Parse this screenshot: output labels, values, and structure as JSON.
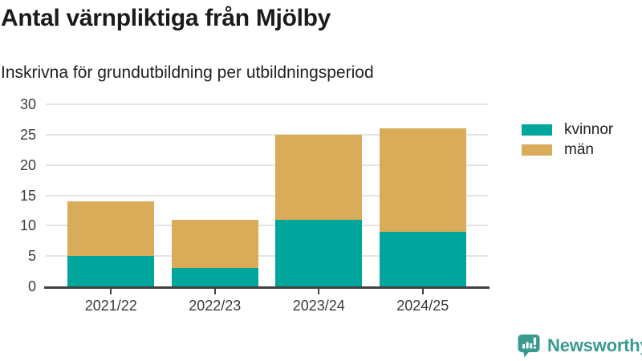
{
  "header": {
    "title": "Antal värnpliktiga från Mjölby",
    "subtitle": "Inskrivna för grundutbildning per utbildningsperiod"
  },
  "chart_data": {
    "type": "bar",
    "stacked": true,
    "title": "Antal värnpliktiga från Mjölby",
    "subtitle": "Inskrivna för grundutbildning per utbildningsperiod",
    "categories": [
      "2021/22",
      "2022/23",
      "2023/24",
      "2024/25"
    ],
    "series": [
      {
        "name": "kvinnor",
        "color": "#00a69b",
        "values": [
          5,
          3,
          11,
          9
        ]
      },
      {
        "name": "män",
        "color": "#d8ac58",
        "values": [
          9,
          8,
          14,
          17
        ]
      }
    ],
    "stack_totals": [
      14,
      11,
      25,
      26
    ],
    "xlabel": "",
    "ylabel": "",
    "ylim": [
      0,
      30
    ],
    "yticks": [
      0,
      5,
      10,
      15,
      20,
      25,
      30
    ],
    "grid": true,
    "legend_position": "right",
    "axis_color": "#424242",
    "gridline_color": "#e4e4e4",
    "tick_label_color": "#3d3d3d"
  },
  "footer": {
    "brand": "Newsworthy",
    "brand_color": "#399a90",
    "logo_icon": "bar-chart-speech-bubble-icon"
  }
}
